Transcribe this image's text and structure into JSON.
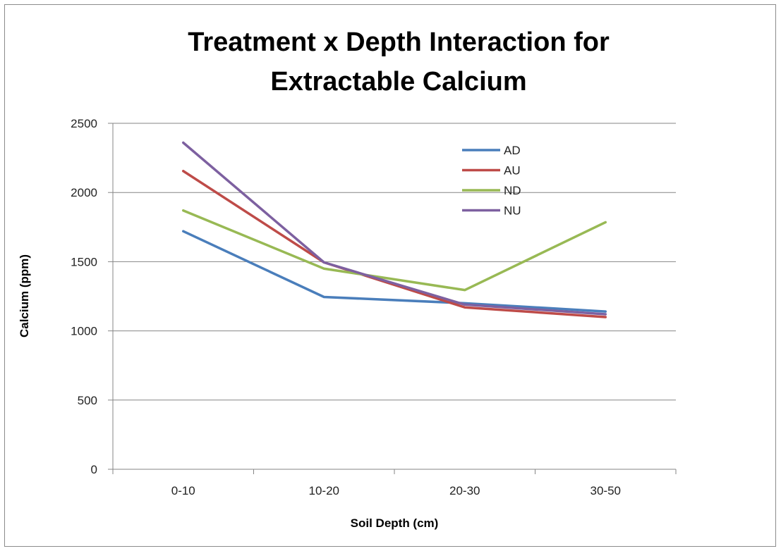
{
  "chart_data": {
    "type": "line",
    "title_line1": "Treatment  x  Depth Interaction for",
    "title_line2": "Extractable Calcium",
    "xlabel": "Soil Depth (cm)",
    "ylabel": "Calcium (ppm)",
    "categories": [
      "0-10",
      "10-20",
      "20-30",
      "30-50"
    ],
    "ylim": [
      0,
      2500
    ],
    "yticks": [
      0,
      500,
      1000,
      1500,
      2000,
      2500
    ],
    "grid": "horizontal",
    "legend_position": "top-right",
    "series": [
      {
        "name": "AD",
        "color": "#4a7ebb",
        "values": [
          1720,
          1245,
          1200,
          1140
        ]
      },
      {
        "name": "AU",
        "color": "#be4b48",
        "values": [
          2155,
          1495,
          1170,
          1100
        ]
      },
      {
        "name": "ND",
        "color": "#98b954",
        "values": [
          1870,
          1450,
          1295,
          1785
        ]
      },
      {
        "name": "NU",
        "color": "#7d60a0",
        "values": [
          2360,
          1495,
          1190,
          1120
        ]
      }
    ]
  }
}
